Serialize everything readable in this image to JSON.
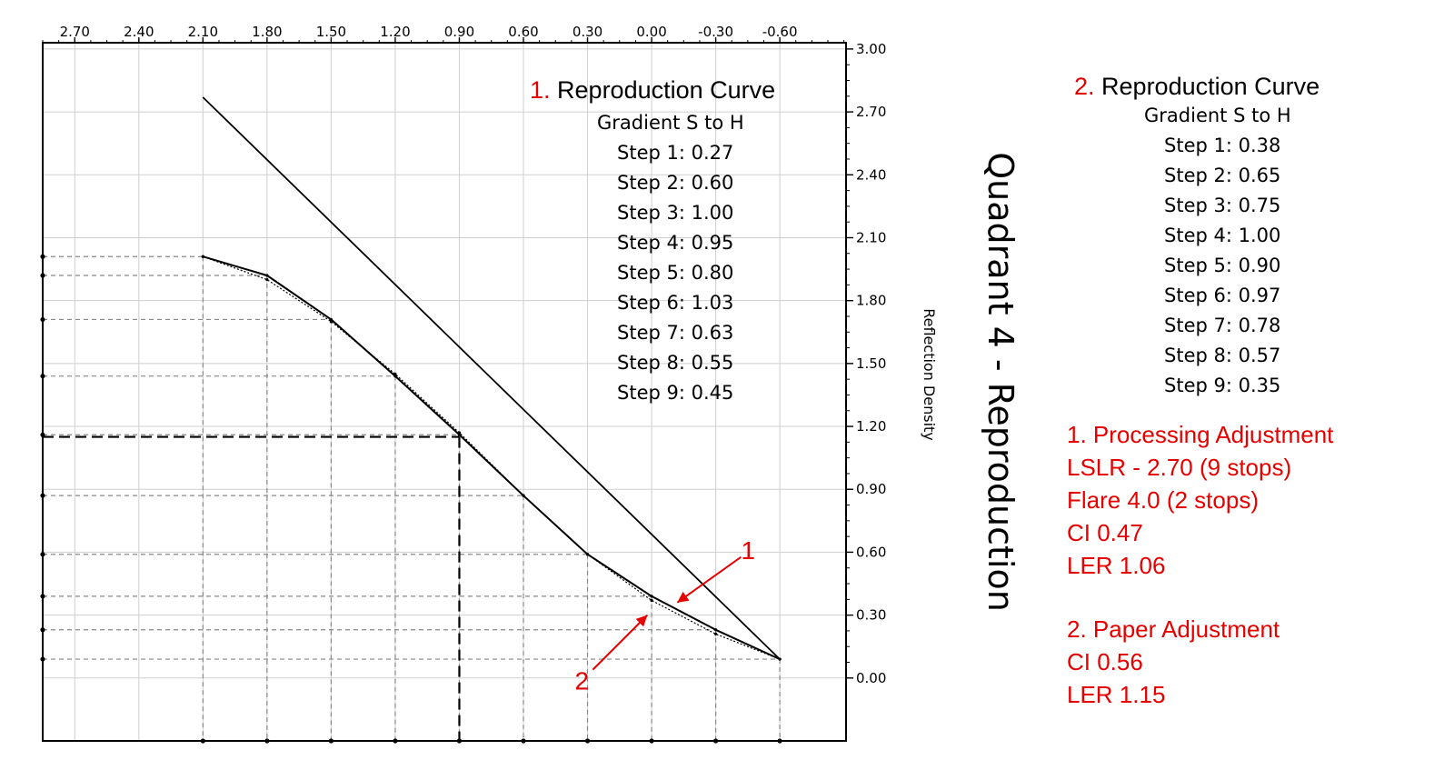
{
  "chart_data": {
    "type": "line",
    "xaxis": {
      "ticks": [
        2.7,
        2.4,
        2.1,
        1.8,
        1.5,
        1.2,
        0.9,
        0.6,
        0.3,
        0.0,
        -0.3,
        -0.6
      ],
      "tick_labels": [
        "2.70",
        "2.40",
        "2.10",
        "1.80",
        "1.50",
        "1.20",
        "0.90",
        "0.60",
        "0.30",
        "0.00",
        "-0.30",
        "-0.60"
      ],
      "range": [
        2.85,
        -0.91
      ],
      "position": "top"
    },
    "yaxis": {
      "ticks": [
        3.0,
        2.7,
        2.4,
        2.1,
        1.8,
        1.5,
        1.2,
        0.9,
        0.6,
        0.3,
        0.0
      ],
      "tick_labels": [
        "3.00",
        "2.70",
        "2.40",
        "2.10",
        "1.80",
        "1.50",
        "1.20",
        "0.90",
        "0.60",
        "0.30",
        "0.00"
      ],
      "range": [
        -0.3,
        3.03
      ],
      "position": "right",
      "label": "Reflection Density"
    },
    "quadrant_label": "Quadrant 4 - Reproduction",
    "grid": true,
    "series": [
      {
        "role": "reference line",
        "x": [
          2.1,
          -0.6
        ],
        "y": [
          2.77,
          0.09
        ]
      },
      {
        "role": "reproduction curve 1",
        "x": [
          2.1,
          1.8,
          1.5,
          1.2,
          0.9,
          0.6,
          0.3,
          0.0,
          -0.3,
          -0.6
        ],
        "y": [
          2.01,
          1.92,
          1.71,
          1.44,
          1.16,
          0.87,
          0.59,
          0.39,
          0.23,
          0.09
        ]
      },
      {
        "role": "reproduction curve 2",
        "x": [
          2.1,
          1.8,
          1.5,
          1.2,
          0.9,
          0.6,
          0.3,
          0.0,
          -0.3,
          -0.6
        ],
        "y": [
          2.01,
          1.9,
          1.7,
          1.45,
          1.17,
          0.87,
          0.59,
          0.37,
          0.21,
          0.09
        ]
      }
    ],
    "step_guides": {
      "x": [
        2.1,
        1.8,
        1.5,
        1.2,
        0.9,
        0.6,
        0.3,
        0.0,
        -0.3,
        -0.6
      ],
      "y": [
        2.01,
        1.92,
        1.71,
        1.44,
        1.16,
        0.87,
        0.59,
        0.39,
        0.23,
        0.09
      ]
    },
    "highlight": {
      "x": 0.9,
      "y": 1.15
    },
    "arrows": [
      {
        "label": "1",
        "target": {
          "x": -0.12,
          "y": 0.36
        }
      },
      {
        "label": "2",
        "target": {
          "x": 0.02,
          "y": 0.3
        }
      }
    ]
  },
  "panel1": {
    "num": "1.",
    "title": " Reproduction Curve",
    "subtitle": "Gradient S to H",
    "steps": [
      "Step 1: 0.27",
      "Step 2: 0.60",
      "Step 3: 1.00",
      "Step 4: 0.95",
      "Step 5: 0.80",
      "Step 6: 1.03",
      "Step 7: 0.63",
      "Step 8: 0.55",
      "Step 9: 0.45"
    ]
  },
  "panel2": {
    "num": "2.",
    "title": " Reproduction Curve",
    "subtitle": "Gradient S to H",
    "steps": [
      "Step 1: 0.38",
      "Step 2: 0.65",
      "Step 3: 0.75",
      "Step 4: 1.00",
      "Step 5: 0.90",
      "Step 6: 0.97",
      "Step 7: 0.78",
      "Step 8: 0.57",
      "Step 9: 0.35"
    ]
  },
  "notes": {
    "group1": [
      "1. Processing Adjustment",
      "LSLR - 2.70 (9 stops)",
      "Flare 4.0 (2 stops)",
      "CI 0.47",
      "LER 1.06"
    ],
    "group2": [
      "2. Paper Adjustment",
      "CI 0.56",
      "LER 1.15"
    ]
  },
  "colors": {
    "annotation_red": "#e60000",
    "grid": "#cfcfcf",
    "guide": "#888888",
    "ink": "#000000"
  }
}
